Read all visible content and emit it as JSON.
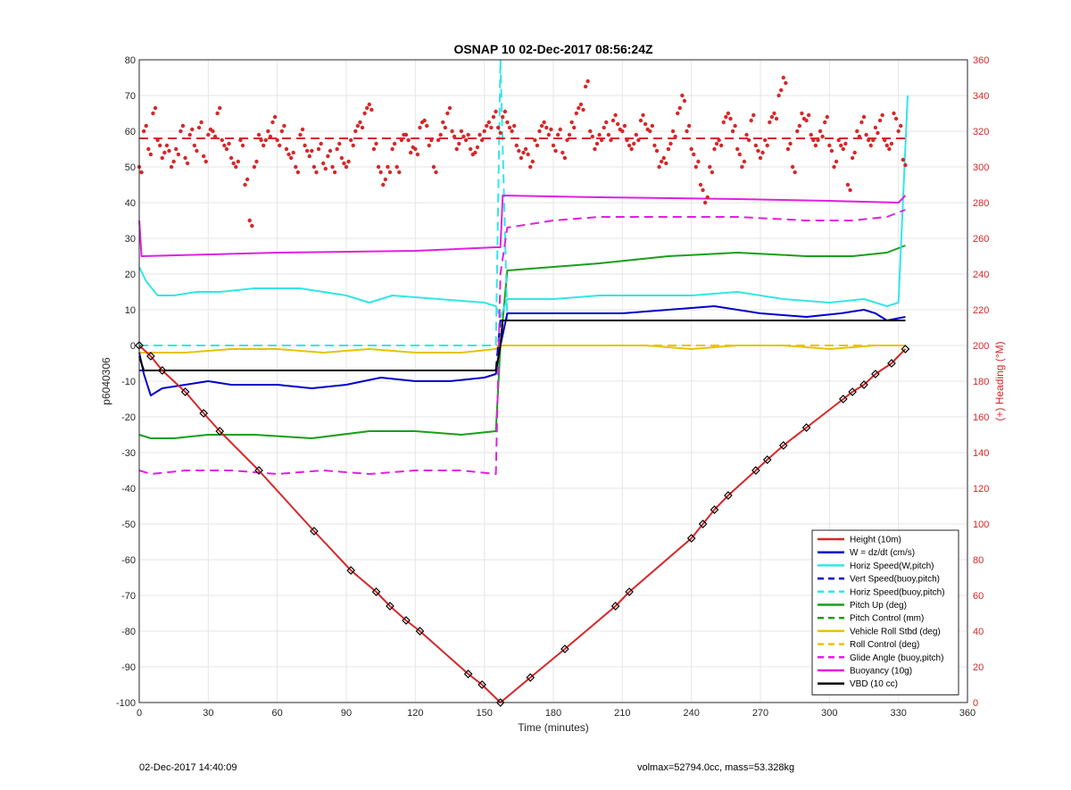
{
  "chart_data": {
    "type": "line",
    "title": "OSNAP 10 02-Dec-2017 08:56:24Z",
    "xlabel": "Time (minutes)",
    "ylabel": "p6040306",
    "y2label": "(+) Heading (°M)",
    "xlim": [
      0,
      360
    ],
    "ylim": [
      -100,
      80
    ],
    "y2lim": [
      0,
      360
    ],
    "xticks": [
      0,
      30,
      60,
      90,
      120,
      150,
      180,
      210,
      240,
      270,
      300,
      330,
      360
    ],
    "yticks": [
      -100,
      -90,
      -80,
      -70,
      -60,
      -50,
      -40,
      -30,
      -20,
      -10,
      0,
      10,
      20,
      30,
      40,
      50,
      60,
      70,
      80
    ],
    "y2ticks": [
      0,
      20,
      40,
      60,
      80,
      100,
      120,
      140,
      160,
      180,
      200,
      220,
      240,
      260,
      280,
      300,
      320,
      340,
      360
    ],
    "grid": true,
    "legend_position": "bottom-right",
    "series": [
      {
        "name": "Height (10m)",
        "color": "#d62728",
        "style": "solid",
        "width": 2,
        "x": [
          0,
          5,
          10,
          20,
          28,
          35,
          52,
          76,
          92,
          103,
          109,
          116,
          122,
          143,
          149,
          157,
          170,
          185,
          207,
          213,
          240,
          245,
          250,
          256,
          268,
          273,
          280,
          290,
          306,
          310,
          315,
          320,
          327,
          333
        ],
        "y": [
          0,
          -3,
          -7,
          -13,
          -19,
          -24,
          -35,
          -52,
          -63,
          -69,
          -73,
          -77,
          -80,
          -92,
          -95,
          -100,
          -93,
          -85,
          -73,
          -69,
          -54,
          -50,
          -46,
          -42,
          -35,
          -32,
          -28,
          -23,
          -15,
          -13,
          -11,
          -8,
          -5,
          -1
        ]
      },
      {
        "name": "W = dz/dt (cm/s)",
        "color": "#0000cc",
        "style": "solid",
        "width": 2,
        "x": [
          0,
          2,
          5,
          10,
          20,
          30,
          40,
          60,
          75,
          90,
          105,
          120,
          135,
          150,
          155,
          157,
          160,
          170,
          190,
          210,
          230,
          250,
          270,
          290,
          305,
          315,
          320,
          325,
          333
        ],
        "y": [
          -2,
          -8,
          -14,
          -12,
          -11,
          -10,
          -11,
          -11,
          -12,
          -11,
          -9,
          -10,
          -10,
          -9,
          -8,
          0,
          9,
          9,
          9,
          9,
          10,
          11,
          9,
          8,
          9,
          10,
          9,
          7,
          8
        ]
      },
      {
        "name": "Horiz Speed(W,pitch)",
        "color": "#33e6e6",
        "style": "solid",
        "width": 2,
        "x": [
          0,
          3,
          8,
          15,
          25,
          35,
          50,
          70,
          90,
          100,
          110,
          130,
          150,
          155,
          157,
          160,
          180,
          200,
          220,
          240,
          260,
          280,
          300,
          315,
          325,
          330,
          334
        ],
        "y": [
          22,
          18,
          14,
          14,
          15,
          15,
          16,
          16,
          14,
          12,
          14,
          13,
          12,
          11,
          8,
          13,
          13,
          14,
          14,
          14,
          15,
          13,
          12,
          13,
          11,
          12,
          70
        ]
      },
      {
        "name": "Vert Speed(buoy,pitch)",
        "color": "#0000cc",
        "style": "dashed",
        "width": 2,
        "x": [
          0,
          155,
          157,
          333
        ],
        "y": [
          -7,
          -7,
          7,
          7
        ]
      },
      {
        "name": "Horiz Speed(buoy,pitch)",
        "color": "#33e6e6",
        "style": "dashed",
        "width": 2,
        "x": [
          0,
          155,
          157,
          160,
          333
        ],
        "y": [
          0,
          0,
          80,
          7,
          7
        ]
      },
      {
        "name": "Pitch Up (deg)",
        "color": "#1a9e1a",
        "style": "solid",
        "width": 2,
        "x": [
          0,
          5,
          15,
          30,
          50,
          75,
          100,
          120,
          140,
          155,
          157,
          160,
          180,
          200,
          230,
          260,
          290,
          310,
          325,
          333
        ],
        "y": [
          -25,
          -26,
          -26,
          -25,
          -25,
          -26,
          -24,
          -24,
          -25,
          -24,
          0,
          21,
          22,
          23,
          25,
          26,
          25,
          25,
          26,
          28
        ]
      },
      {
        "name": "Pitch Control (mm)",
        "color": "#1a9e1a",
        "style": "dashed",
        "width": 2,
        "x": [
          0,
          155,
          157,
          333
        ],
        "y": [
          -7,
          -7,
          7,
          7
        ]
      },
      {
        "name": "Vehicle Roll Stbd (deg)",
        "color": "#e6c300",
        "style": "solid",
        "width": 2,
        "x": [
          0,
          20,
          40,
          60,
          80,
          100,
          120,
          140,
          155,
          157,
          180,
          200,
          220,
          240,
          260,
          280,
          300,
          320,
          333
        ],
        "y": [
          -2,
          -2,
          -1,
          -1,
          -2,
          -1,
          -2,
          -2,
          -1,
          0,
          0,
          0,
          0,
          -1,
          0,
          0,
          -1,
          0,
          0
        ]
      },
      {
        "name": "Roll Control (deg)",
        "color": "#e6c300",
        "style": "dashed",
        "width": 2,
        "x": [
          0,
          155,
          157,
          333
        ],
        "y": [
          0,
          0,
          0,
          0
        ]
      },
      {
        "name": "Glide Angle (buoy,pitch)",
        "color": "#e020e0",
        "style": "dashed",
        "width": 2,
        "x": [
          0,
          5,
          20,
          40,
          60,
          80,
          100,
          120,
          140,
          155,
          157,
          160,
          180,
          200,
          230,
          260,
          290,
          310,
          325,
          333
        ],
        "y": [
          -35,
          -36,
          -35,
          -35,
          -36,
          -35,
          -36,
          -35,
          -35,
          -36,
          20,
          33,
          35,
          36,
          36,
          36,
          35,
          35,
          36,
          38
        ]
      },
      {
        "name": "Buoyancy (10g)",
        "color": "#e020e0",
        "style": "solid",
        "width": 2,
        "x": [
          0,
          1,
          60,
          120,
          155,
          157,
          158,
          200,
          260,
          300,
          330,
          333
        ],
        "y": [
          35,
          25,
          26,
          26.5,
          27.5,
          27.5,
          42,
          41.5,
          41,
          40.5,
          40,
          42
        ]
      },
      {
        "name": "VBD (10 cc)",
        "color": "#000000",
        "style": "solid",
        "width": 2,
        "x": [
          0,
          2,
          155,
          157,
          158,
          333
        ],
        "y": [
          -3,
          -7,
          -7,
          0,
          7,
          7
        ]
      }
    ],
    "heading": {
      "name": "Heading",
      "color": "#d62728",
      "mean_deg": 316,
      "x": [
        0,
        2,
        4,
        6,
        8,
        10,
        12,
        14,
        16,
        18,
        20,
        22,
        24,
        26,
        28,
        30,
        32,
        34,
        36,
        38,
        40,
        42,
        44,
        46,
        48,
        50,
        52,
        54,
        56,
        58,
        60,
        62,
        64,
        66,
        68,
        70,
        72,
        74,
        76,
        78,
        80,
        82,
        84,
        86,
        88,
        90,
        92,
        94,
        96,
        98,
        100,
        102,
        104,
        106,
        108,
        110,
        112,
        114,
        116,
        118,
        120,
        122,
        124,
        126,
        128,
        130,
        132,
        134,
        136,
        138,
        140,
        142,
        144,
        146,
        148,
        150,
        152,
        154,
        156,
        158,
        160,
        162,
        164,
        166,
        168,
        170,
        172,
        174,
        176,
        178,
        180,
        182,
        184,
        186,
        188,
        190,
        192,
        194,
        196,
        198,
        200,
        202,
        204,
        206,
        208,
        210,
        212,
        214,
        216,
        218,
        220,
        222,
        224,
        226,
        228,
        230,
        232,
        234,
        236,
        238,
        240,
        242,
        244,
        246,
        248,
        250,
        252,
        254,
        256,
        258,
        260,
        262,
        264,
        266,
        268,
        270,
        272,
        274,
        276,
        278,
        280,
        282,
        284,
        286,
        288,
        290,
        292,
        294,
        296,
        298,
        300,
        302,
        304,
        306,
        308,
        310,
        312,
        314,
        316,
        318,
        320,
        322,
        324,
        326,
        328,
        330,
        332
      ],
      "y": [
        300,
        320,
        310,
        330,
        315,
        305,
        312,
        300,
        310,
        320,
        305,
        318,
        312,
        322,
        306,
        318,
        320,
        330,
        315,
        310,
        305,
        300,
        315,
        290,
        270,
        300,
        318,
        312,
        320,
        325,
        315,
        320,
        310,
        305,
        300,
        318,
        312,
        306,
        300,
        310,
        302,
        306,
        300,
        310,
        305,
        300,
        315,
        320,
        325,
        330,
        335,
        310,
        300,
        290,
        300,
        310,
        300,
        315,
        318,
        308,
        310,
        322,
        326,
        312,
        300,
        315,
        325,
        330,
        320,
        310,
        320,
        315,
        310,
        308,
        318,
        320,
        325,
        328,
        322,
        328,
        325,
        320,
        312,
        305,
        310,
        300,
        315,
        320,
        325,
        318,
        312,
        318,
        308,
        315,
        325,
        330,
        335,
        345,
        320,
        310,
        318,
        322,
        318,
        326,
        324,
        320,
        315,
        310,
        318,
        326,
        324,
        320,
        312,
        300,
        305,
        310,
        320,
        330,
        340,
        320,
        310,
        300,
        290,
        280,
        300,
        310,
        315,
        325,
        330,
        320,
        310,
        300,
        318,
        326,
        312,
        305,
        315,
        325,
        330,
        340,
        350,
        310,
        300,
        320,
        330,
        326,
        318,
        312,
        320,
        325,
        312,
        300,
        315,
        310,
        290,
        305,
        320,
        325,
        318,
        312,
        322,
        326,
        315,
        310,
        330,
        320,
        304
      ]
    }
  },
  "footer": {
    "left": "02-Dec-2017 14:40:09",
    "right": "volmax=52794.0cc, mass=53.328kg"
  }
}
